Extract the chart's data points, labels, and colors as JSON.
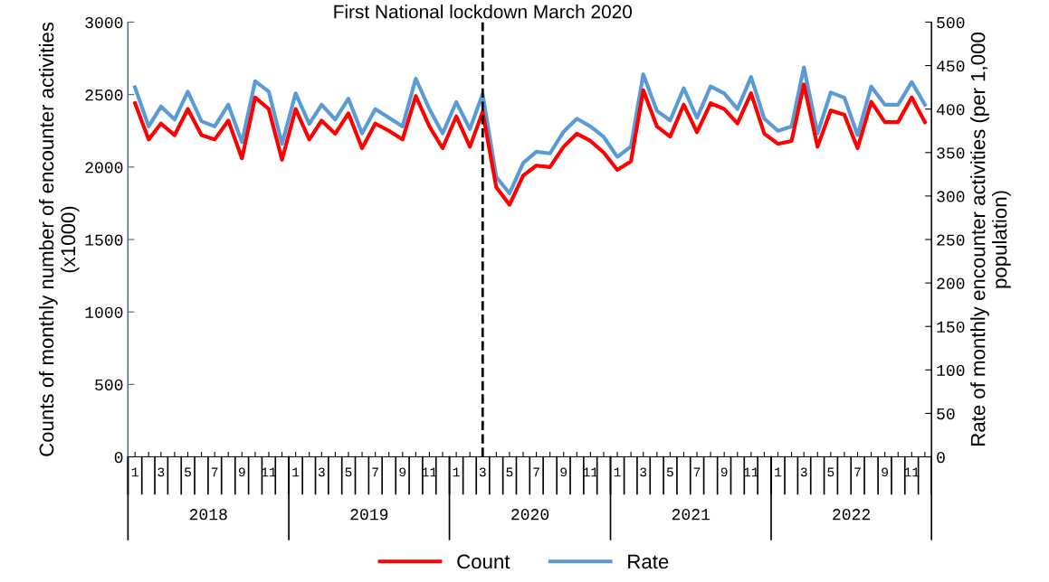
{
  "chart_data": {
    "type": "line",
    "x": [
      "2018-01",
      "2018-02",
      "2018-03",
      "2018-04",
      "2018-05",
      "2018-06",
      "2018-07",
      "2018-08",
      "2018-09",
      "2018-10",
      "2018-11",
      "2018-12",
      "2019-01",
      "2019-02",
      "2019-03",
      "2019-04",
      "2019-05",
      "2019-06",
      "2019-07",
      "2019-08",
      "2019-09",
      "2019-10",
      "2019-11",
      "2019-12",
      "2020-01",
      "2020-02",
      "2020-03",
      "2020-04",
      "2020-05",
      "2020-06",
      "2020-07",
      "2020-08",
      "2020-09",
      "2020-10",
      "2020-11",
      "2020-12",
      "2021-01",
      "2021-02",
      "2021-03",
      "2021-04",
      "2021-05",
      "2021-06",
      "2021-07",
      "2021-08",
      "2021-09",
      "2021-10",
      "2021-11",
      "2021-12",
      "2022-01",
      "2022-02",
      "2022-03",
      "2022-04",
      "2022-05",
      "2022-06",
      "2022-07",
      "2022-08",
      "2022-09",
      "2022-10",
      "2022-11",
      "2022-12"
    ],
    "series": [
      {
        "name": "Count",
        "color": "#ff0000",
        "values": [
          2440,
          2190,
          2300,
          2220,
          2400,
          2220,
          2190,
          2320,
          2060,
          2480,
          2400,
          2050,
          2400,
          2190,
          2320,
          2230,
          2370,
          2130,
          2300,
          2250,
          2190,
          2490,
          2280,
          2130,
          2350,
          2140,
          2380,
          1860,
          1740,
          1940,
          2010,
          2000,
          2140,
          2230,
          2180,
          2100,
          1980,
          2040,
          2530,
          2280,
          2210,
          2430,
          2240,
          2440,
          2400,
          2300,
          2510,
          2230,
          2160,
          2180,
          2570,
          2140,
          2390,
          2360,
          2130,
          2450,
          2310,
          2310,
          2480,
          2310
        ]
      },
      {
        "name": "Rate",
        "color": "#5b9bd5",
        "axis": "y2",
        "values": [
          425,
          380,
          403,
          388,
          420,
          386,
          380,
          405,
          362,
          432,
          420,
          360,
          418,
          383,
          405,
          388,
          412,
          372,
          400,
          390,
          380,
          435,
          400,
          372,
          408,
          377,
          417,
          322,
          303,
          338,
          351,
          349,
          374,
          389,
          380,
          368,
          345,
          357,
          440,
          398,
          387,
          424,
          390,
          426,
          418,
          400,
          437,
          389,
          375,
          380,
          448,
          372,
          419,
          413,
          370,
          426,
          405,
          405,
          431,
          405
        ]
      }
    ],
    "xlim": [
      "2017-12-16",
      "2022-12-16"
    ],
    "xticks": [
      {
        "value": "2018-01",
        "label": "1"
      },
      {
        "value": "2018-02",
        "label": null
      },
      {
        "value": "2018-03",
        "label": "3"
      },
      {
        "value": "2018-04",
        "label": null
      },
      {
        "value": "2018-05",
        "label": "5"
      },
      {
        "value": "2018-06",
        "label": null
      },
      {
        "value": "2018-07",
        "label": "7"
      },
      {
        "value": "2018-08",
        "label": null
      },
      {
        "value": "2018-09",
        "label": "9"
      },
      {
        "value": "2018-10",
        "label": null
      },
      {
        "value": "2018-11",
        "label": "11"
      },
      {
        "value": "2018-12",
        "label": null
      },
      {
        "value": "2019-01",
        "label": "1"
      },
      {
        "value": "2019-02",
        "label": null
      },
      {
        "value": "2019-03",
        "label": "3"
      },
      {
        "value": "2019-04",
        "label": null
      },
      {
        "value": "2019-05",
        "label": "5"
      },
      {
        "value": "2019-06",
        "label": null
      },
      {
        "value": "2019-07",
        "label": "7"
      },
      {
        "value": "2019-08",
        "label": null
      },
      {
        "value": "2019-09",
        "label": "9"
      },
      {
        "value": "2019-10",
        "label": null
      },
      {
        "value": "2019-11",
        "label": "11"
      },
      {
        "value": "2019-12",
        "label": null
      },
      {
        "value": "2020-01",
        "label": "1"
      },
      {
        "value": "2020-02",
        "label": null
      },
      {
        "value": "2020-03",
        "label": "3"
      },
      {
        "value": "2020-04",
        "label": null
      },
      {
        "value": "2020-05",
        "label": "5"
      },
      {
        "value": "2020-06",
        "label": null
      },
      {
        "value": "2020-07",
        "label": "7"
      },
      {
        "value": "2020-08",
        "label": null
      },
      {
        "value": "2020-09",
        "label": "9"
      },
      {
        "value": "2020-10",
        "label": null
      },
      {
        "value": "2020-11",
        "label": "11"
      },
      {
        "value": "2020-12",
        "label": null
      },
      {
        "value": "2021-01",
        "label": "1"
      },
      {
        "value": "2021-02",
        "label": null
      },
      {
        "value": "2021-03",
        "label": "3"
      },
      {
        "value": "2021-04",
        "label": null
      },
      {
        "value": "2021-05",
        "label": "5"
      },
      {
        "value": "2021-06",
        "label": null
      },
      {
        "value": "2021-07",
        "label": "7"
      },
      {
        "value": "2021-08",
        "label": null
      },
      {
        "value": "2021-09",
        "label": "9"
      },
      {
        "value": "2021-10",
        "label": null
      },
      {
        "value": "2021-11",
        "label": "11"
      },
      {
        "value": "2021-12",
        "label": null
      },
      {
        "value": "2022-01",
        "label": "1"
      },
      {
        "value": "2022-02",
        "label": null
      },
      {
        "value": "2022-03",
        "label": "3"
      },
      {
        "value": "2022-04",
        "label": null
      },
      {
        "value": "2022-05",
        "label": "5"
      },
      {
        "value": "2022-06",
        "label": null
      },
      {
        "value": "2022-07",
        "label": "7"
      },
      {
        "value": "2022-08",
        "label": null
      },
      {
        "value": "2022-09",
        "label": "9"
      },
      {
        "value": "2022-10",
        "label": null
      },
      {
        "value": "2022-11",
        "label": "11"
      },
      {
        "value": "2022-12",
        "label": null
      }
    ],
    "ylim": [
      0,
      3000
    ],
    "yticks": [
      0,
      500,
      1000,
      1500,
      2000,
      2500,
      3000
    ],
    "y2lim": [
      0,
      500
    ],
    "y2ticks": [
      0,
      50,
      100,
      150,
      200,
      250,
      300,
      350,
      400,
      450,
      500
    ],
    "ylabel": "Counts of monthly number of encounter activities\n(x1000)",
    "y2label": "Rate of monthly encounter activities (per 1,000\npopulation)",
    "annotations": [
      "2018",
      "2019",
      "2020",
      "2021",
      "2022"
    ],
    "ref_lines": [
      {
        "axis": "x",
        "value": "2020-03",
        "label": "First National lockdown March 2020",
        "color": "#000000",
        "line_style": "dashed"
      }
    ],
    "legend": "bottom",
    "grid": false,
    "marker": "none",
    "line_style": "solid"
  }
}
